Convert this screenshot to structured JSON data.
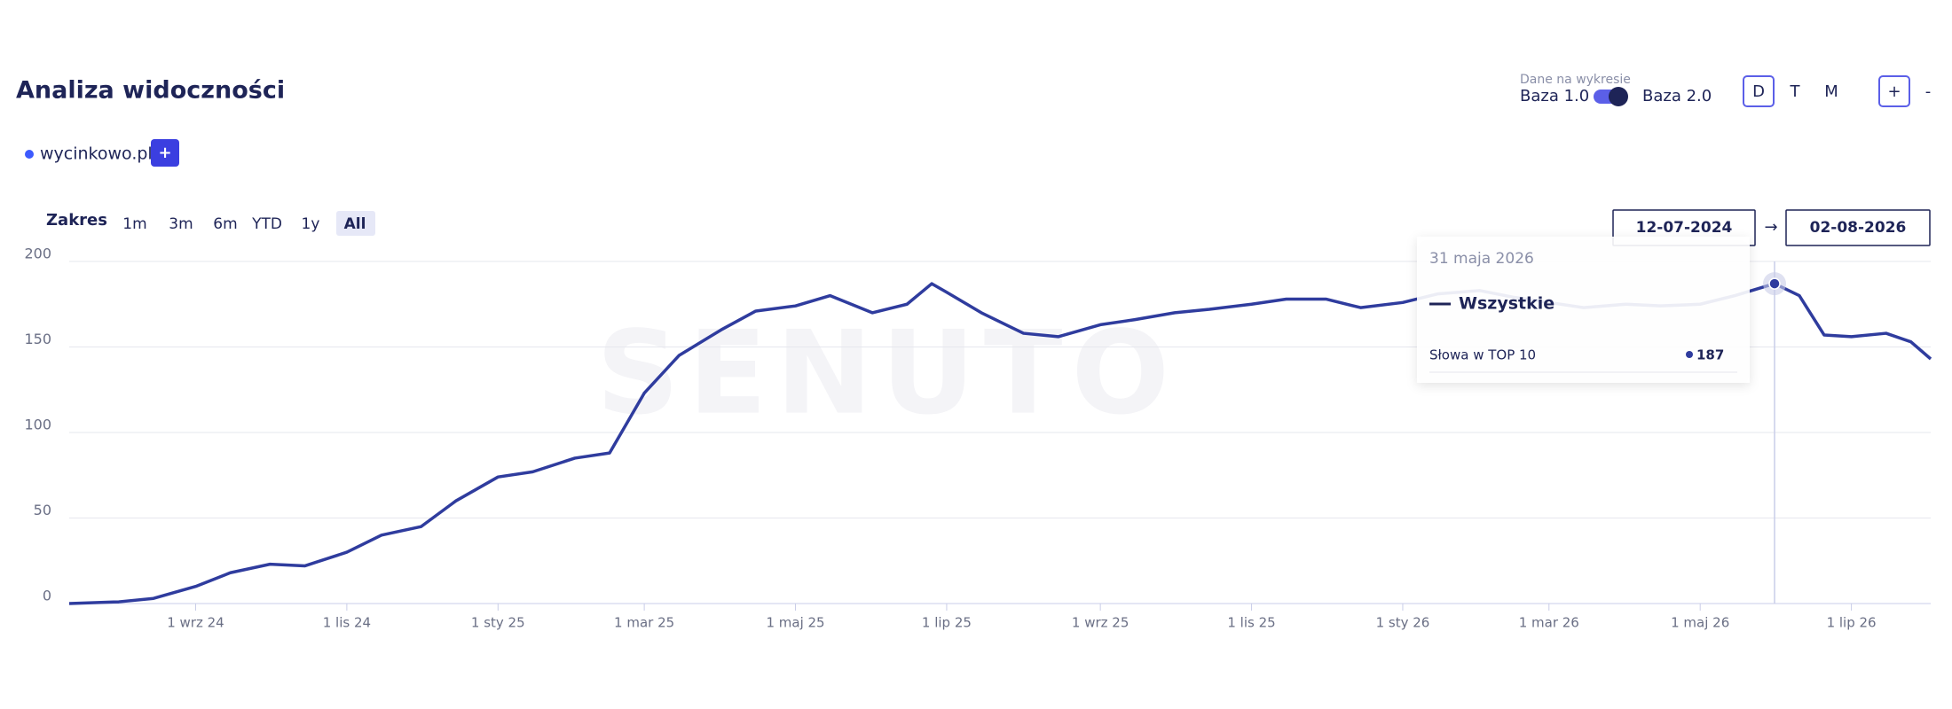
{
  "header": {
    "title": "Analiza widoczności",
    "data_label": "Dane na wykresie",
    "base_1": "Baza 1.0",
    "base_2": "Baza 2.0",
    "views": [
      "D",
      "T",
      "M"
    ],
    "zoom_in": "+",
    "zoom_out": "-"
  },
  "domains": {
    "add": "+"
  },
  "range": {
    "label": "Zakres",
    "options": [
      "1m",
      "3m",
      "6m",
      "YTD",
      "1y",
      "All"
    ],
    "from": "12-07-2024",
    "arrow": "→",
    "to": "02-08-2026"
  },
  "chart_data": {
    "type": "line",
    "watermark": "SENUTO",
    "x": [
      "2024-07-12",
      "2024-08-01",
      "2024-08-15",
      "2024-09-01",
      "2024-09-15",
      "2024-10-01",
      "2024-10-15",
      "2024-11-01",
      "2024-11-15",
      "2024-12-01",
      "2024-12-15",
      "2025-01-01",
      "2025-01-15",
      "2025-02-01",
      "2025-02-15",
      "2025-03-01",
      "2025-03-15",
      "2025-04-01",
      "2025-04-15",
      "2025-05-01",
      "2025-05-15",
      "2025-06-01",
      "2025-06-15",
      "2025-06-25",
      "2025-07-01",
      "2025-07-15",
      "2025-08-01",
      "2025-08-15",
      "2025-09-01",
      "2025-09-15",
      "2025-10-01",
      "2025-10-15",
      "2025-11-01",
      "2025-11-15",
      "2025-12-01",
      "2025-12-15",
      "2026-01-01",
      "2026-01-15",
      "2026-02-01",
      "2026-02-15",
      "2026-03-01",
      "2026-03-15",
      "2026-04-01",
      "2026-04-15",
      "2026-05-01",
      "2026-05-15",
      "2026-05-31",
      "2026-06-10",
      "2026-06-20",
      "2026-07-01",
      "2026-07-15",
      "2026-07-25",
      "2026-08-02"
    ],
    "series": [
      {
        "name": "wycinkowo.pl",
        "color": "#2f3c9e",
        "values": [
          0,
          1,
          3,
          10,
          18,
          23,
          22,
          30,
          40,
          45,
          60,
          74,
          77,
          85,
          88,
          123,
          145,
          160,
          171,
          174,
          180,
          170,
          175,
          187,
          182,
          170,
          158,
          156,
          163,
          166,
          170,
          172,
          175,
          178,
          178,
          173,
          176,
          181,
          183,
          179,
          176,
          173,
          175,
          174,
          175,
          180,
          187,
          180,
          157,
          156,
          158,
          153,
          143
        ]
      }
    ],
    "xlim": [
      "2024-07-12",
      "2026-08-02"
    ],
    "xticks": [
      {
        "value": "2024-09-01",
        "label": "1 wrz 24"
      },
      {
        "value": "2024-11-01",
        "label": "1 lis 24"
      },
      {
        "value": "2025-01-01",
        "label": "1 sty 25"
      },
      {
        "value": "2025-03-01",
        "label": "1 mar 25"
      },
      {
        "value": "2025-05-01",
        "label": "1 maj 25"
      },
      {
        "value": "2025-07-01",
        "label": "1 lip 25"
      },
      {
        "value": "2025-09-01",
        "label": "1 wrz 25"
      },
      {
        "value": "2025-11-01",
        "label": "1 lis 25"
      },
      {
        "value": "2026-01-01",
        "label": "1 sty 26"
      },
      {
        "value": "2026-03-01",
        "label": "1 mar 26"
      },
      {
        "value": "2026-05-01",
        "label": "1 maj 26"
      },
      {
        "value": "2026-07-01",
        "label": "1 lip 26"
      }
    ],
    "ylim": [
      0,
      200
    ],
    "yticks": [
      0,
      50,
      100,
      150,
      200
    ],
    "grid": true,
    "tooltip": {
      "date": "31 maja 2026",
      "group": "Wszystkie",
      "metric": "Słowa w TOP 10",
      "value": 187
    }
  }
}
